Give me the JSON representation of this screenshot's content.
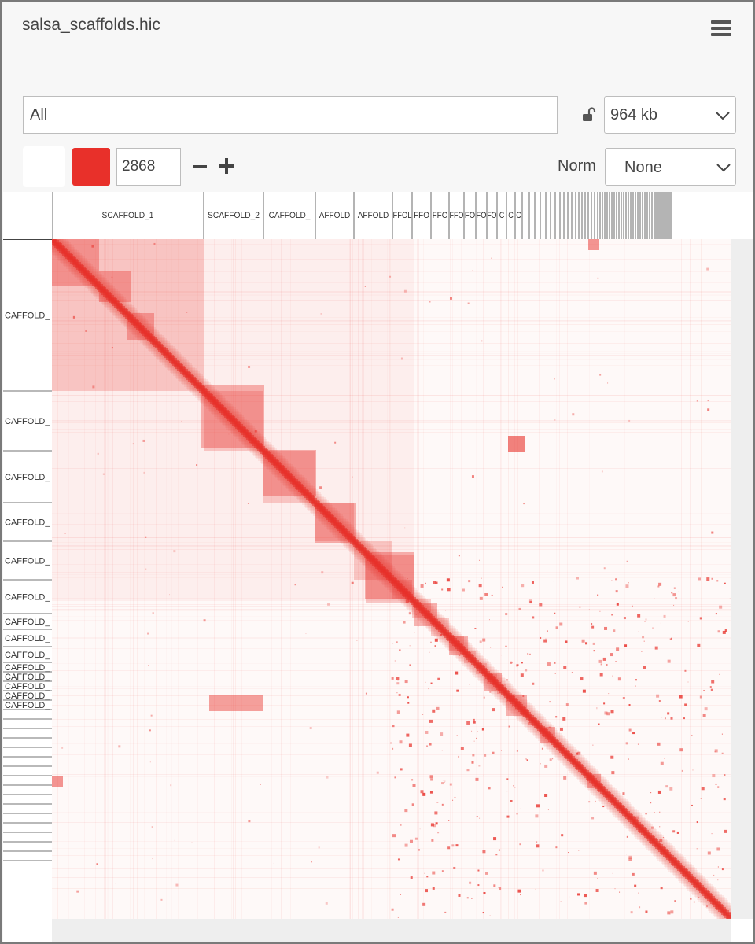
{
  "app": {
    "filename": "salsa_scaffolds.hic"
  },
  "icons": {
    "menu": "hamburger-menu-icon",
    "lock": "unlocked-padlock-icon",
    "resolution_dropdown": "chevron-down-icon",
    "norm_dropdown": "chevron-down-icon",
    "zoom_out": "minus-icon",
    "zoom_in": "plus-icon"
  },
  "controls": {
    "locus_value": "All",
    "resolution_value": "964 kb",
    "threshold_value": "2868",
    "norm_label": "Norm",
    "norm_value": "None"
  },
  "colors": {
    "background_color": "#ffffff",
    "foreground_color": "#e8302a",
    "map_color": "#e8302a"
  },
  "tracks": {
    "x_labels": [
      "SCAFFOLD_1",
      "SCAFFOLD_2",
      "CAFFOLD_",
      "AFFOLD",
      "AFFOLD",
      "FFOL",
      "FFO",
      "FFO",
      "FFO",
      "FO",
      "FO",
      "FO",
      "C",
      "C",
      "C"
    ],
    "y_labels": [
      "CAFFOLD_",
      "CAFFOLD_",
      "CAFFOLD_",
      "CAFFOLD_",
      "CAFFOLD_",
      "CAFFOLD_",
      "CAFFOLD_",
      "CAFFOLD_",
      "CAFFOLD_",
      "CAFFOLD_",
      "CAFFOLD_",
      "CAFFOLD_",
      "CAFFOLD_",
      "CAFFOLD_"
    ]
  }
}
